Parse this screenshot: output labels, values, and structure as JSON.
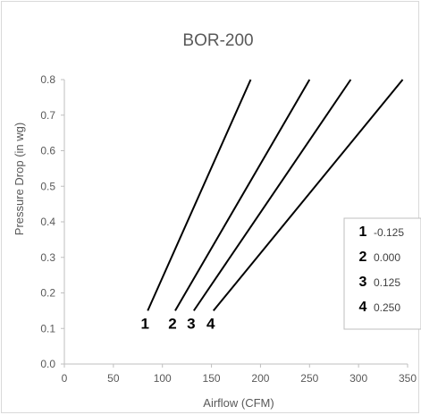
{
  "chart_data": {
    "type": "line",
    "title": "BOR-200",
    "xlabel": "Airflow (CFM)",
    "ylabel": "Pressure Drop (in wg)",
    "xlim": [
      0,
      350
    ],
    "ylim": [
      0,
      0.8
    ],
    "x_ticks": [
      "0",
      "50",
      "100",
      "150",
      "200",
      "250",
      "300",
      "350"
    ],
    "y_ticks": [
      "0.0",
      "0.1",
      "0.2",
      "0.3",
      "0.4",
      "0.5",
      "0.6",
      "0.7",
      "0.8"
    ],
    "grid": false,
    "legend_position": "right",
    "series": [
      {
        "name": "1",
        "legend_value": "-0.125",
        "points": [
          [
            85,
            0.15
          ],
          [
            190,
            0.8
          ]
        ]
      },
      {
        "name": "2",
        "legend_value": "0.000",
        "points": [
          [
            113,
            0.15
          ],
          [
            250,
            0.8
          ]
        ]
      },
      {
        "name": "3",
        "legend_value": "0.125",
        "points": [
          [
            132,
            0.15
          ],
          [
            292,
            0.8
          ]
        ]
      },
      {
        "name": "4",
        "legend_value": "0.250",
        "points": [
          [
            152,
            0.15
          ],
          [
            345,
            0.8
          ]
        ]
      }
    ]
  }
}
